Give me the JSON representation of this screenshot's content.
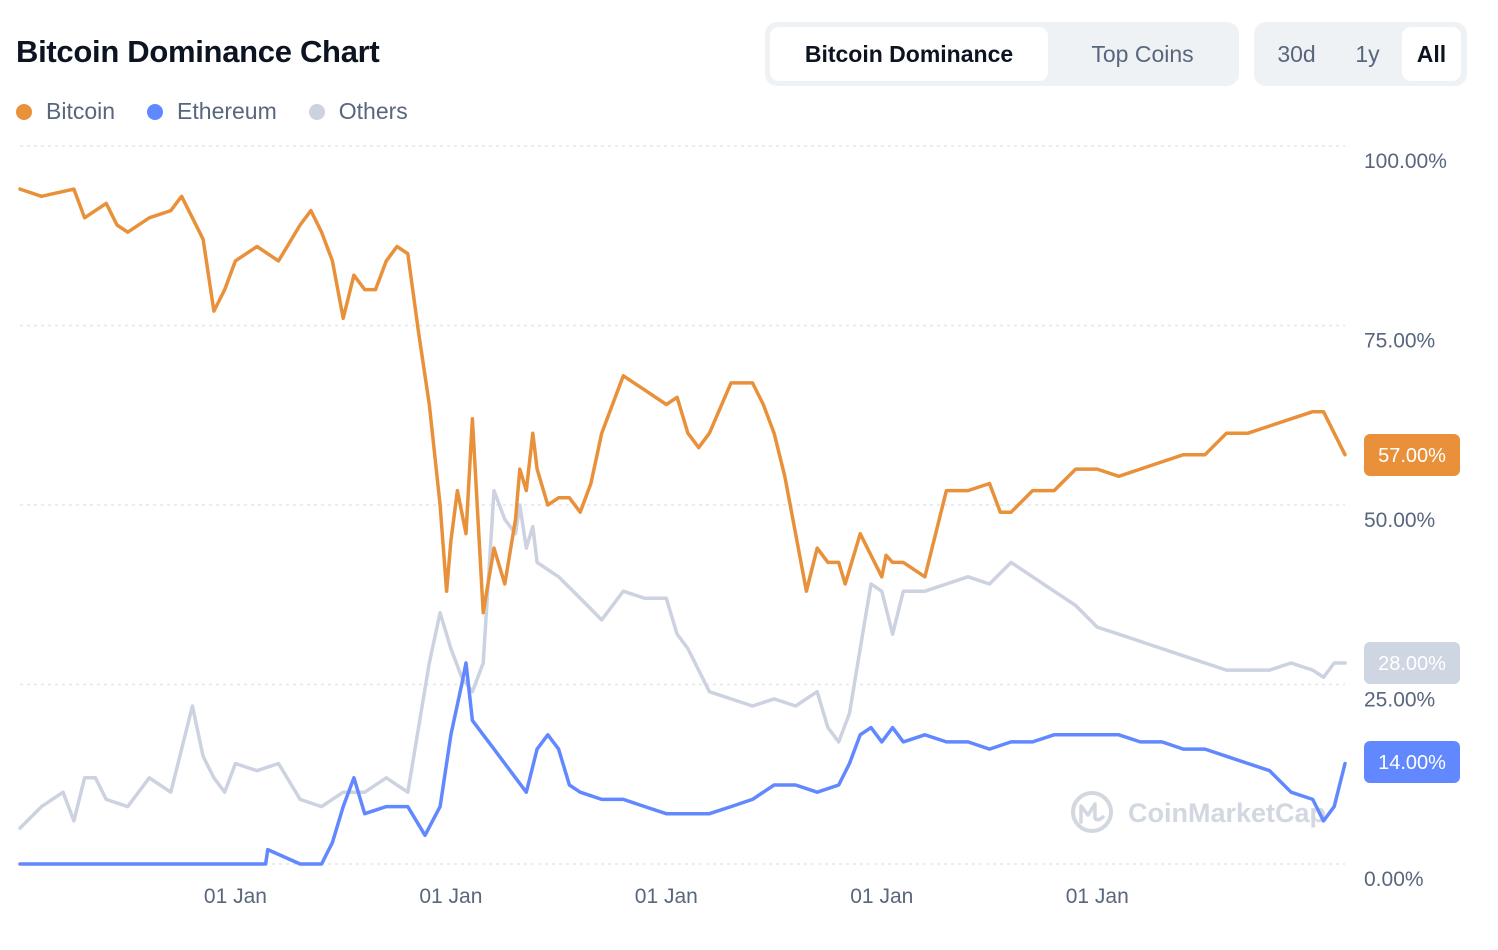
{
  "header": {
    "title": "Bitcoin Dominance Chart"
  },
  "view_toggle": {
    "options": [
      "Bitcoin Dominance",
      "Top Coins"
    ],
    "active": "Bitcoin Dominance"
  },
  "range_toggle": {
    "options": [
      "30d",
      "1y",
      "All"
    ],
    "active": "All"
  },
  "watermark": "CoinMarketCap",
  "colors": {
    "bitcoin": "#e8913a",
    "ethereum": "#6188ff",
    "others": "#ccd2df",
    "grid": "#e3e6ec",
    "axis_text": "#58667e"
  },
  "chart_data": {
    "type": "line",
    "title": "Bitcoin Dominance Chart",
    "y_unit": "%",
    "ylim": [
      0,
      100
    ],
    "y_ticks": [
      "100.00%",
      "75.00%",
      "50.00%",
      "25.00%",
      "0.00%"
    ],
    "x_ticks": [
      "01 Jan",
      "01 Jan",
      "01 Jan",
      "01 Jan",
      "01 Jan"
    ],
    "x_tick_positions": [
      1,
      2,
      3,
      4,
      5
    ],
    "x_range": [
      0,
      6.15
    ],
    "grid": true,
    "legend_position": "top-left",
    "current_values": [
      {
        "series": "Bitcoin",
        "label": "57.00%"
      },
      {
        "series": "Others",
        "label": "28.00%"
      },
      {
        "series": "Ethereum",
        "label": "14.00%"
      }
    ],
    "series": [
      {
        "name": "Bitcoin",
        "color": "#e8913a",
        "x": [
          0,
          0.1,
          0.25,
          0.3,
          0.35,
          0.4,
          0.45,
          0.5,
          0.6,
          0.7,
          0.75,
          0.8,
          0.85,
          0.9,
          0.95,
          1.0,
          1.1,
          1.2,
          1.3,
          1.35,
          1.4,
          1.45,
          1.5,
          1.55,
          1.6,
          1.65,
          1.7,
          1.75,
          1.8,
          1.85,
          1.9,
          1.95,
          1.98,
          2.0,
          2.03,
          2.07,
          2.1,
          2.15,
          2.2,
          2.25,
          2.3,
          2.32,
          2.35,
          2.38,
          2.4,
          2.45,
          2.5,
          2.55,
          2.6,
          2.65,
          2.7,
          2.8,
          2.9,
          3.0,
          3.05,
          3.1,
          3.15,
          3.2,
          3.3,
          3.4,
          3.45,
          3.5,
          3.55,
          3.6,
          3.65,
          3.7,
          3.75,
          3.8,
          3.83,
          3.85,
          3.9,
          3.95,
          4.0,
          4.02,
          4.05,
          4.1,
          4.2,
          4.3,
          4.4,
          4.5,
          4.55,
          4.6,
          4.7,
          4.8,
          4.9,
          5.0,
          5.1,
          5.2,
          5.3,
          5.4,
          5.5,
          5.6,
          5.7,
          5.8,
          5.9,
          6.0,
          6.05,
          6.1,
          6.15
        ],
        "y": [
          94,
          93,
          94,
          90,
          91,
          92,
          89,
          88,
          90,
          91,
          93,
          90,
          87,
          77,
          80,
          84,
          86,
          84,
          89,
          91,
          88,
          84,
          76,
          82,
          80,
          80,
          84,
          86,
          85,
          74,
          64,
          50,
          38,
          45,
          52,
          46,
          62,
          35,
          44,
          39,
          48,
          55,
          52,
          60,
          55,
          50,
          51,
          51,
          49,
          53,
          60,
          68,
          66,
          64,
          65,
          60,
          58,
          60,
          67,
          67,
          64,
          60,
          54,
          46,
          38,
          44,
          42,
          42,
          39,
          41,
          46,
          43,
          40,
          43,
          42,
          42,
          40,
          52,
          52,
          53,
          49,
          49,
          52,
          52,
          55,
          55,
          54,
          55,
          56,
          57,
          57,
          60,
          60,
          61,
          62,
          63,
          63,
          60,
          57
        ]
      },
      {
        "name": "Ethereum",
        "color": "#6188ff",
        "x": [
          0,
          0.5,
          1.0,
          1.14,
          1.15,
          1.3,
          1.4,
          1.45,
          1.5,
          1.55,
          1.6,
          1.7,
          1.8,
          1.88,
          1.95,
          2.0,
          2.05,
          2.07,
          2.1,
          2.15,
          2.2,
          2.3,
          2.35,
          2.4,
          2.45,
          2.5,
          2.55,
          2.6,
          2.7,
          2.8,
          2.9,
          3.0,
          3.1,
          3.2,
          3.3,
          3.4,
          3.5,
          3.6,
          3.7,
          3.8,
          3.85,
          3.9,
          3.95,
          4.0,
          4.05,
          4.1,
          4.2,
          4.3,
          4.4,
          4.5,
          4.6,
          4.7,
          4.8,
          4.9,
          5.0,
          5.1,
          5.2,
          5.3,
          5.4,
          5.5,
          5.6,
          5.7,
          5.8,
          5.9,
          6.0,
          6.05,
          6.1,
          6.15
        ],
        "y": [
          0,
          0,
          0,
          0,
          2,
          0,
          0,
          3,
          8,
          12,
          7,
          8,
          8,
          4,
          8,
          18,
          25,
          28,
          20,
          18,
          16,
          12,
          10,
          16,
          18,
          16,
          11,
          10,
          9,
          9,
          8,
          7,
          7,
          7,
          8,
          9,
          11,
          11,
          10,
          11,
          14,
          18,
          19,
          17,
          19,
          17,
          18,
          17,
          17,
          16,
          17,
          17,
          18,
          18,
          18,
          18,
          17,
          17,
          16,
          16,
          15,
          14,
          13,
          10,
          9,
          6,
          8,
          14
        ]
      },
      {
        "name": "Others",
        "color": "#ccd2df",
        "x": [
          0,
          0.1,
          0.2,
          0.25,
          0.3,
          0.35,
          0.4,
          0.5,
          0.6,
          0.7,
          0.8,
          0.85,
          0.9,
          0.95,
          1.0,
          1.1,
          1.2,
          1.3,
          1.4,
          1.5,
          1.6,
          1.7,
          1.8,
          1.9,
          1.95,
          2.0,
          2.05,
          2.1,
          2.15,
          2.2,
          2.25,
          2.3,
          2.32,
          2.35,
          2.38,
          2.4,
          2.5,
          2.6,
          2.7,
          2.8,
          2.9,
          3.0,
          3.05,
          3.1,
          3.2,
          3.3,
          3.4,
          3.5,
          3.6,
          3.7,
          3.75,
          3.8,
          3.85,
          3.9,
          3.95,
          4.0,
          4.05,
          4.1,
          4.2,
          4.3,
          4.4,
          4.5,
          4.6,
          4.7,
          4.8,
          4.9,
          5.0,
          5.1,
          5.2,
          5.3,
          5.4,
          5.5,
          5.6,
          5.7,
          5.8,
          5.9,
          6.0,
          6.05,
          6.1,
          6.15
        ],
        "y": [
          5,
          8,
          10,
          6,
          12,
          12,
          9,
          8,
          12,
          10,
          22,
          15,
          12,
          10,
          14,
          13,
          14,
          9,
          8,
          10,
          10,
          12,
          10,
          28,
          35,
          30,
          26,
          24,
          28,
          52,
          48,
          46,
          50,
          44,
          47,
          42,
          40,
          37,
          34,
          38,
          37,
          37,
          32,
          30,
          24,
          23,
          22,
          23,
          22,
          24,
          19,
          17,
          21,
          30,
          39,
          38,
          32,
          38,
          38,
          39,
          40,
          39,
          42,
          40,
          38,
          36,
          33,
          32,
          31,
          30,
          29,
          28,
          27,
          27,
          27,
          28,
          27,
          26,
          28,
          28
        ]
      }
    ]
  }
}
